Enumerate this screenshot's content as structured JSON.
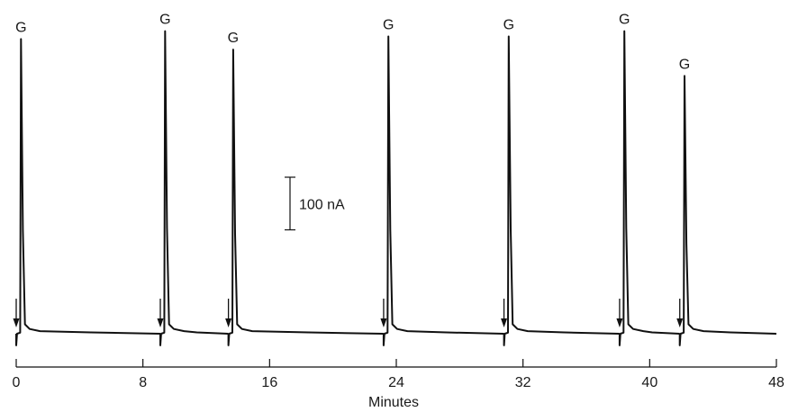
{
  "chart_data": {
    "type": "line",
    "title": "",
    "xlabel": "Minutes",
    "ylabel": "",
    "xlim": [
      0,
      48
    ],
    "x_ticks": [
      0,
      8,
      16,
      24,
      32,
      40,
      48
    ],
    "x_tick_labels": [
      "0",
      "8",
      "16",
      "24",
      "32",
      "40",
      "48"
    ],
    "ylim": [
      -60,
      600
    ],
    "y_unit": "nA",
    "baseline": 0,
    "scale_bar": {
      "value": 100,
      "label": "100 nA"
    },
    "peak_label": "G",
    "injections": [
      {
        "inject_min": 0.0,
        "peak_min": 0.3,
        "peak_height": 560
      },
      {
        "inject_min": 9.1,
        "peak_min": 9.4,
        "peak_height": 575
      },
      {
        "inject_min": 13.4,
        "peak_min": 13.7,
        "peak_height": 540
      },
      {
        "inject_min": 23.2,
        "peak_min": 23.5,
        "peak_height": 565
      },
      {
        "inject_min": 30.8,
        "peak_min": 31.1,
        "peak_height": 565
      },
      {
        "inject_min": 38.1,
        "peak_min": 38.4,
        "peak_height": 575
      },
      {
        "inject_min": 41.9,
        "peak_min": 42.2,
        "peak_height": 490
      }
    ],
    "grid": false,
    "legend": "none"
  }
}
